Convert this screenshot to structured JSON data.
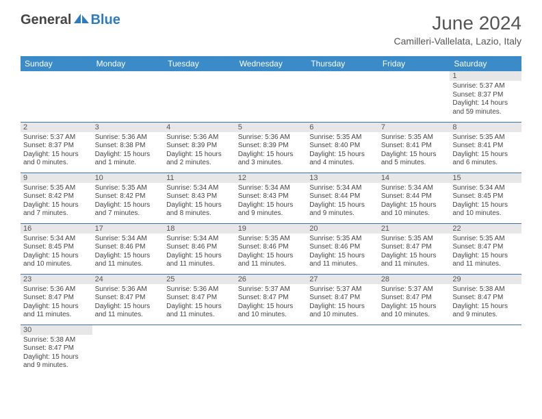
{
  "logo": {
    "text1": "General",
    "text2": "Blue"
  },
  "title": "June 2024",
  "location": "Camilleri-Vallelata, Lazio, Italy",
  "colors": {
    "header_bg": "#3b8bc9",
    "header_text": "#ffffff",
    "row_border": "#3b6fa8",
    "daynum_bg": "#e7e7e7",
    "text": "#444444",
    "logo_gray": "#454545",
    "logo_blue": "#2d7bc0"
  },
  "day_headers": [
    "Sunday",
    "Monday",
    "Tuesday",
    "Wednesday",
    "Thursday",
    "Friday",
    "Saturday"
  ],
  "weeks": [
    [
      null,
      null,
      null,
      null,
      null,
      null,
      {
        "n": "1",
        "sr": "5:37 AM",
        "ss": "8:37 PM",
        "dl": "14 hours and 59 minutes."
      }
    ],
    [
      {
        "n": "2",
        "sr": "5:37 AM",
        "ss": "8:37 PM",
        "dl": "15 hours and 0 minutes."
      },
      {
        "n": "3",
        "sr": "5:36 AM",
        "ss": "8:38 PM",
        "dl": "15 hours and 1 minute."
      },
      {
        "n": "4",
        "sr": "5:36 AM",
        "ss": "8:39 PM",
        "dl": "15 hours and 2 minutes."
      },
      {
        "n": "5",
        "sr": "5:36 AM",
        "ss": "8:39 PM",
        "dl": "15 hours and 3 minutes."
      },
      {
        "n": "6",
        "sr": "5:35 AM",
        "ss": "8:40 PM",
        "dl": "15 hours and 4 minutes."
      },
      {
        "n": "7",
        "sr": "5:35 AM",
        "ss": "8:41 PM",
        "dl": "15 hours and 5 minutes."
      },
      {
        "n": "8",
        "sr": "5:35 AM",
        "ss": "8:41 PM",
        "dl": "15 hours and 6 minutes."
      }
    ],
    [
      {
        "n": "9",
        "sr": "5:35 AM",
        "ss": "8:42 PM",
        "dl": "15 hours and 7 minutes."
      },
      {
        "n": "10",
        "sr": "5:35 AM",
        "ss": "8:42 PM",
        "dl": "15 hours and 7 minutes."
      },
      {
        "n": "11",
        "sr": "5:34 AM",
        "ss": "8:43 PM",
        "dl": "15 hours and 8 minutes."
      },
      {
        "n": "12",
        "sr": "5:34 AM",
        "ss": "8:43 PM",
        "dl": "15 hours and 9 minutes."
      },
      {
        "n": "13",
        "sr": "5:34 AM",
        "ss": "8:44 PM",
        "dl": "15 hours and 9 minutes."
      },
      {
        "n": "14",
        "sr": "5:34 AM",
        "ss": "8:44 PM",
        "dl": "15 hours and 10 minutes."
      },
      {
        "n": "15",
        "sr": "5:34 AM",
        "ss": "8:45 PM",
        "dl": "15 hours and 10 minutes."
      }
    ],
    [
      {
        "n": "16",
        "sr": "5:34 AM",
        "ss": "8:45 PM",
        "dl": "15 hours and 10 minutes."
      },
      {
        "n": "17",
        "sr": "5:34 AM",
        "ss": "8:46 PM",
        "dl": "15 hours and 11 minutes."
      },
      {
        "n": "18",
        "sr": "5:34 AM",
        "ss": "8:46 PM",
        "dl": "15 hours and 11 minutes."
      },
      {
        "n": "19",
        "sr": "5:35 AM",
        "ss": "8:46 PM",
        "dl": "15 hours and 11 minutes."
      },
      {
        "n": "20",
        "sr": "5:35 AM",
        "ss": "8:46 PM",
        "dl": "15 hours and 11 minutes."
      },
      {
        "n": "21",
        "sr": "5:35 AM",
        "ss": "8:47 PM",
        "dl": "15 hours and 11 minutes."
      },
      {
        "n": "22",
        "sr": "5:35 AM",
        "ss": "8:47 PM",
        "dl": "15 hours and 11 minutes."
      }
    ],
    [
      {
        "n": "23",
        "sr": "5:36 AM",
        "ss": "8:47 PM",
        "dl": "15 hours and 11 minutes."
      },
      {
        "n": "24",
        "sr": "5:36 AM",
        "ss": "8:47 PM",
        "dl": "15 hours and 11 minutes."
      },
      {
        "n": "25",
        "sr": "5:36 AM",
        "ss": "8:47 PM",
        "dl": "15 hours and 11 minutes."
      },
      {
        "n": "26",
        "sr": "5:37 AM",
        "ss": "8:47 PM",
        "dl": "15 hours and 10 minutes."
      },
      {
        "n": "27",
        "sr": "5:37 AM",
        "ss": "8:47 PM",
        "dl": "15 hours and 10 minutes."
      },
      {
        "n": "28",
        "sr": "5:37 AM",
        "ss": "8:47 PM",
        "dl": "15 hours and 10 minutes."
      },
      {
        "n": "29",
        "sr": "5:38 AM",
        "ss": "8:47 PM",
        "dl": "15 hours and 9 minutes."
      }
    ],
    [
      {
        "n": "30",
        "sr": "5:38 AM",
        "ss": "8:47 PM",
        "dl": "15 hours and 9 minutes."
      },
      null,
      null,
      null,
      null,
      null,
      null
    ]
  ],
  "labels": {
    "sunrise": "Sunrise:",
    "sunset": "Sunset:",
    "daylight": "Daylight:"
  }
}
